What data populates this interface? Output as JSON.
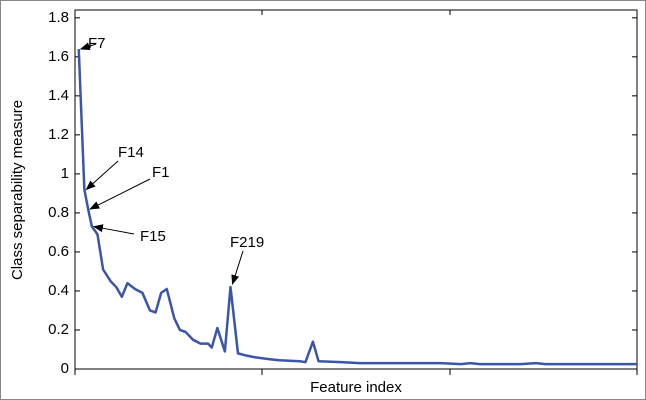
{
  "chart_data": {
    "type": "line",
    "x_label": "Feature index",
    "y_label": "Class separability measure",
    "x": [
      2,
      5,
      7,
      9,
      12,
      15,
      19,
      22,
      25,
      28,
      32,
      36,
      40,
      43,
      46,
      49,
      53,
      56,
      59,
      63,
      67,
      71,
      73,
      76,
      80,
      83,
      87,
      91,
      96,
      104,
      109,
      120,
      123,
      127,
      130,
      142,
      152,
      163,
      184,
      195,
      206,
      211,
      216,
      238,
      246,
      251,
      280,
      300
    ],
    "series": [
      {
        "name": "Class separability",
        "color": "#3a56a8",
        "values": [
          1.64,
          0.92,
          0.82,
          0.73,
          0.69,
          0.51,
          0.45,
          0.42,
          0.37,
          0.44,
          0.41,
          0.39,
          0.3,
          0.29,
          0.39,
          0.41,
          0.26,
          0.2,
          0.19,
          0.15,
          0.13,
          0.13,
          0.11,
          0.21,
          0.09,
          0.42,
          0.08,
          0.07,
          0.06,
          0.05,
          0.045,
          0.04,
          0.035,
          0.14,
          0.04,
          0.035,
          0.03,
          0.03,
          0.03,
          0.03,
          0.025,
          0.03,
          0.025,
          0.025,
          0.03,
          0.025,
          0.025,
          0.025
        ]
      }
    ],
    "xlim": [
      0,
      300
    ],
    "ylim": [
      0,
      1.84
    ],
    "yticks": [
      0,
      0.2,
      0.4,
      0.6,
      0.8,
      1,
      1.2,
      1.4,
      1.6,
      1.8
    ],
    "annotations": [
      {
        "text": "F7"
      },
      {
        "text": "F14"
      },
      {
        "text": "F1"
      },
      {
        "text": "F15"
      },
      {
        "text": "F219"
      }
    ],
    "grid": false
  }
}
